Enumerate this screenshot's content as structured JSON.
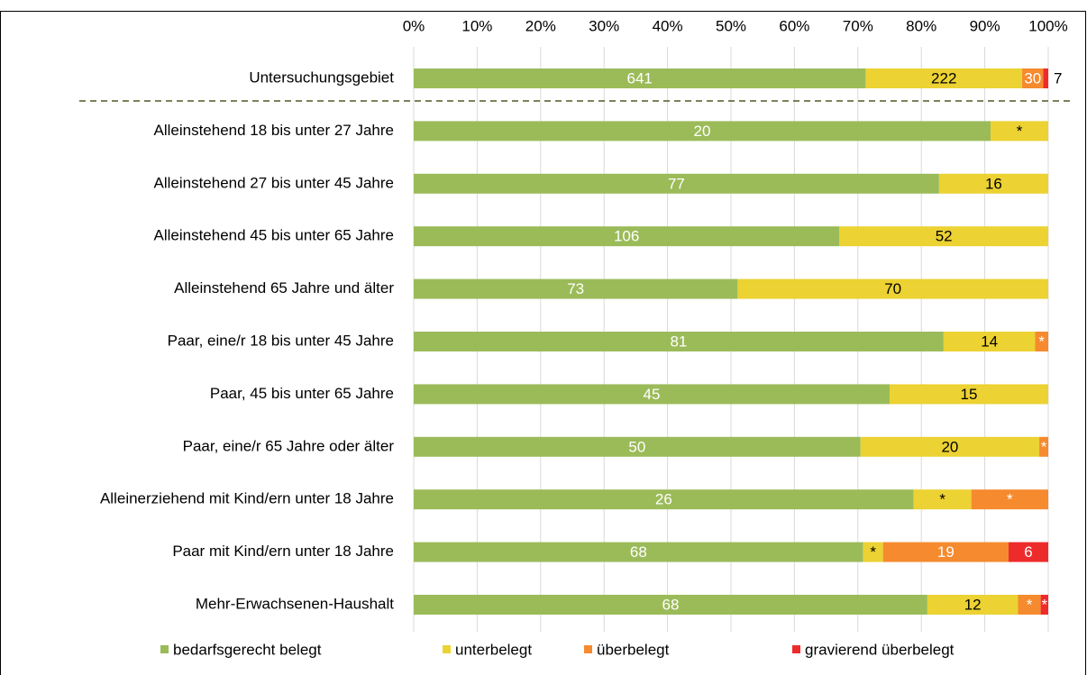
{
  "chart_data": {
    "type": "bar",
    "orientation": "horizontal",
    "stacked": "percent",
    "categories": [
      "Untersuchungsgebiet",
      "Alleinstehend 18 bis unter 27 Jahre",
      "Alleinstehend 27 bis unter 45 Jahre",
      "Alleinstehend 45 bis unter 65 Jahre",
      "Alleinstehend 65 Jahre und älter",
      "Paar, eine/r 18 bis unter 45 Jahre",
      "Paar, 45 bis unter 65 Jahre",
      "Paar, eine/r 65 Jahre oder älter",
      "Alleinerziehend mit Kind/ern unter 18 Jahre",
      "Paar mit Kind/ern unter 18 Jahre",
      "Mehr-Erwachsenen-Haushalt"
    ],
    "series": [
      {
        "name": "bedarfsgerecht belegt",
        "color": "#9bbb59",
        "values": [
          641,
          20,
          77,
          106,
          73,
          81,
          45,
          50,
          26,
          68,
          68
        ]
      },
      {
        "name": "unterbelegt",
        "color": "#ecd232",
        "values": [
          222,
          2,
          16,
          52,
          70,
          14,
          15,
          20,
          3,
          3,
          12
        ],
        "value_labels": [
          "222",
          "*",
          "16",
          "52",
          "70",
          "14",
          "15",
          "20",
          "*",
          "*",
          "12"
        ]
      },
      {
        "name": "überbelegt",
        "color": "#f68a2e",
        "values": [
          30,
          0,
          0,
          0,
          0,
          2,
          0,
          1,
          4,
          19,
          3
        ],
        "value_labels": [
          "30",
          null,
          null,
          null,
          null,
          "*",
          null,
          "*",
          "*",
          "19",
          "*"
        ]
      },
      {
        "name": "gravierend überbelegt",
        "color": "#ee2b2b",
        "values": [
          7,
          0,
          0,
          0,
          0,
          0,
          0,
          0,
          0,
          6,
          1
        ],
        "value_labels": [
          "7",
          null,
          null,
          null,
          null,
          null,
          null,
          null,
          null,
          "6",
          "*"
        ]
      }
    ],
    "xlim": [
      0,
      100
    ],
    "xticks": [
      {
        "value": 0,
        "label": "0%"
      },
      {
        "value": 10,
        "label": "10%"
      },
      {
        "value": 20,
        "label": "20%"
      },
      {
        "value": 30,
        "label": "30%"
      },
      {
        "value": 40,
        "label": "40%"
      },
      {
        "value": 50,
        "label": "50%"
      },
      {
        "value": 60,
        "label": "60%"
      },
      {
        "value": 70,
        "label": "70%"
      },
      {
        "value": 80,
        "label": "80%"
      },
      {
        "value": 90,
        "label": "90%"
      },
      {
        "value": 100,
        "label": "100%"
      }
    ],
    "grid": true,
    "legend": "bottom"
  }
}
